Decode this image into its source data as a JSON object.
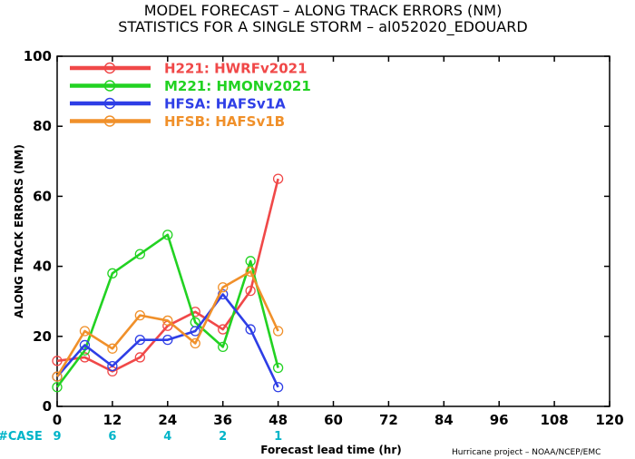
{
  "chart_data": {
    "type": "line",
    "title": "MODEL FORECAST – ALONG TRACK ERRORS (NM)",
    "subtitle": "STATISTICS FOR A SINGLE STORM – al052020_EDOUARD",
    "xlabel": "Forecast lead time (hr)",
    "ylabel": "ALONG TRACK ERRORS (NM)",
    "xlim": [
      0,
      120
    ],
    "ylim": [
      0,
      100
    ],
    "xticks": [
      "0",
      "12",
      "24",
      "36",
      "48",
      "60",
      "72",
      "84",
      "96",
      "108",
      "120"
    ],
    "yticks": [
      "0",
      "20",
      "40",
      "60",
      "80",
      "100"
    ],
    "grid": false,
    "legend_position": "top-left",
    "x": [
      0,
      6,
      12,
      18,
      24,
      30,
      36,
      42,
      48
    ],
    "series": [
      {
        "name": "H221: HWRFv2021",
        "color": "#f04848",
        "values": [
          13,
          14,
          10,
          14,
          23,
          27,
          22,
          33,
          65
        ]
      },
      {
        "name": "M221: HMONv2021",
        "color": "#22d222",
        "values": [
          5.5,
          16,
          38,
          43.5,
          49,
          24,
          17,
          41.5,
          11
        ]
      },
      {
        "name": "HFSA: HAFSv1A",
        "color": "#2e3ee6",
        "values": [
          8.5,
          17.5,
          11.5,
          19,
          19,
          21.5,
          32,
          22,
          5.5
        ]
      },
      {
        "name": "HFSB: HAFSv1B",
        "color": "#f0902a",
        "values": [
          8.5,
          21.5,
          16.5,
          26,
          24.5,
          18,
          34,
          38.5,
          21.5
        ]
      }
    ],
    "case_label": "#CASE",
    "case_counts": [
      {
        "x": 0,
        "n": "9"
      },
      {
        "x": 12,
        "n": "6"
      },
      {
        "x": 24,
        "n": "4"
      },
      {
        "x": 36,
        "n": "2"
      },
      {
        "x": 48,
        "n": "1"
      }
    ],
    "credit": "Hurricane project – NOAA/NCEP/EMC"
  }
}
